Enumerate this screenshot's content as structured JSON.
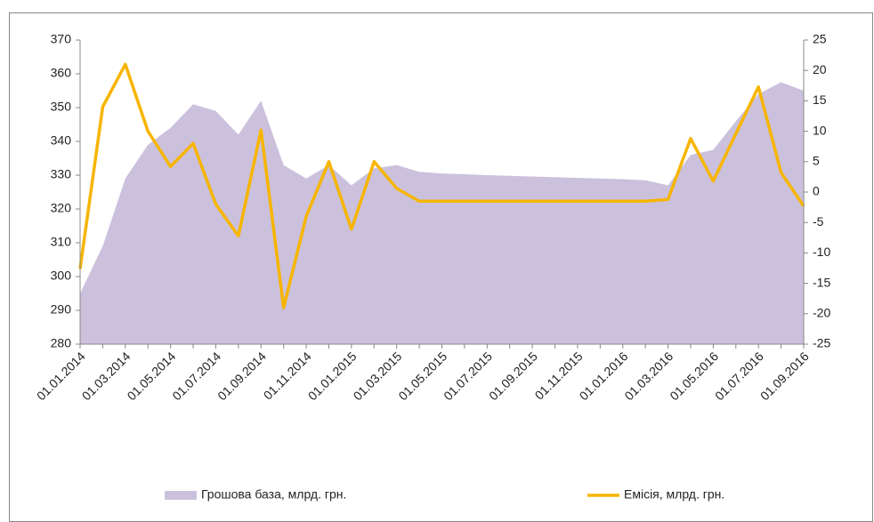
{
  "chart_data": {
    "type": "area-line",
    "categories": [
      "01.01.2014",
      null,
      "01.03.2014",
      null,
      "01.05.2014",
      null,
      "01.07.2014",
      null,
      "01.09.2014",
      null,
      "01.11.2014",
      null,
      "01.01.2015",
      null,
      "01.03.2015",
      null,
      "01.05.2015",
      null,
      "01.07.2015",
      null,
      "01.09.2015",
      null,
      "01.11.2015",
      null,
      "01.01.2016",
      null,
      "01.03.2016",
      null,
      "01.05.2016",
      null,
      "01.07.2016",
      null,
      "01.09.2016"
    ],
    "series": [
      {
        "name": "Грошова база, млрд. грн.",
        "color": "#cbc1dd",
        "kind": "area",
        "axis": "y",
        "values": [
          295,
          309,
          329,
          339,
          344,
          351,
          349,
          342,
          352,
          333,
          329,
          333,
          327,
          332,
          333,
          331,
          330.5,
          330.3,
          330,
          329.8,
          329.6,
          329.4,
          329.2,
          329,
          328.8,
          328.5,
          327,
          336,
          337.5,
          346,
          354,
          357.5,
          355
        ]
      },
      {
        "name": "Емісія, млрд. грн.",
        "color": "#f7b500",
        "kind": "line",
        "axis": "y2",
        "values": [
          -12.6,
          14,
          21,
          10,
          4.2,
          8,
          -2,
          -7.2,
          10.2,
          -19,
          -4,
          5,
          -6.1,
          5,
          0.6,
          -1.5,
          -1.5,
          -1.5,
          -1.5,
          -1.5,
          -1.5,
          -1.5,
          -1.5,
          -1.5,
          -1.5,
          -1.5,
          -1.2,
          8.8,
          1.8,
          9.6,
          17.3,
          3.2,
          -2.3
        ]
      }
    ],
    "ylim": [
      280,
      370
    ],
    "yticks": [
      280,
      290,
      300,
      310,
      320,
      330,
      340,
      350,
      360,
      370
    ],
    "y2lim": [
      -25,
      25
    ],
    "y2ticks": [
      -25,
      -20,
      -15,
      -10,
      -5,
      0,
      5,
      10,
      15,
      20,
      25
    ],
    "legend": "bottom"
  }
}
